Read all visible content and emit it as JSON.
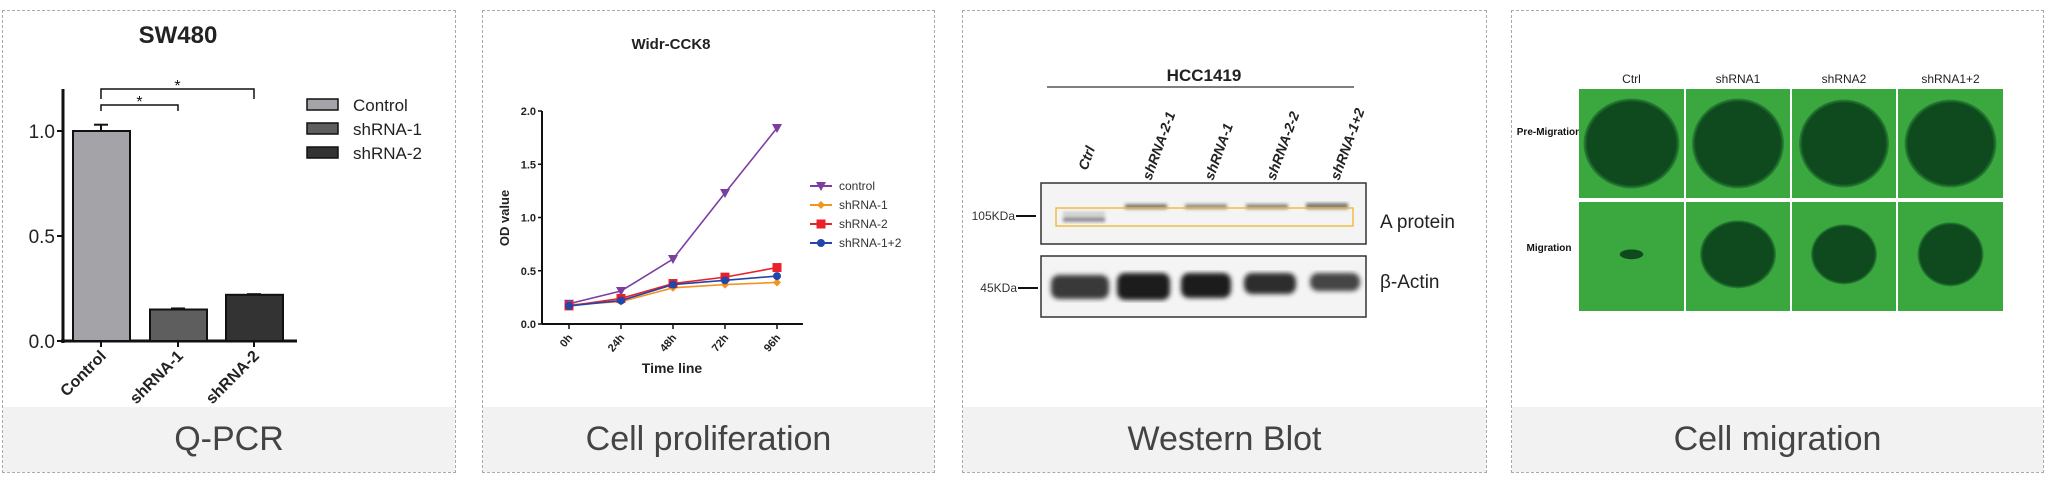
{
  "panels": [
    {
      "caption": "Q-PCR"
    },
    {
      "caption": "Cell proliferation"
    },
    {
      "caption": "Western Blot"
    },
    {
      "caption": "Cell migration"
    }
  ],
  "chart_data": [
    {
      "type": "bar",
      "title": "SW480",
      "categories": [
        "Control",
        "shRNA-1",
        "shRNA-2"
      ],
      "values": [
        1.0,
        0.15,
        0.22
      ],
      "errors": [
        0.03,
        0.005,
        0.003
      ],
      "colors": [
        "#a3a3a8",
        "#5e5e5e",
        "#333333"
      ],
      "legend": [
        "Control",
        "shRNA-1",
        "shRNA-2"
      ],
      "legend_position": "right",
      "yticks": [
        "0.0",
        "0.5",
        "1.0"
      ],
      "ylim": [
        0,
        1.2
      ],
      "significance": [
        "*",
        "*"
      ]
    },
    {
      "type": "line",
      "title": "Widr-CCK8",
      "xlabel": "Time line",
      "ylabel": "OD value",
      "categories": [
        "0h",
        "24h",
        "48h",
        "72h",
        "96h"
      ],
      "yticks": [
        "0.0",
        "0.5",
        "1.0",
        "1.5",
        "2.0"
      ],
      "ylim": [
        0,
        2.0
      ],
      "legend_position": "right",
      "series": [
        {
          "name": "control",
          "color": "#7b3fa0",
          "marker": "triangle-down",
          "values": [
            0.19,
            0.31,
            0.61,
            1.23,
            1.84
          ]
        },
        {
          "name": "shRNA-1",
          "color": "#f39322",
          "marker": "diamond",
          "values": [
            0.18,
            0.21,
            0.34,
            0.37,
            0.39
          ]
        },
        {
          "name": "shRNA-2",
          "color": "#e8212a",
          "marker": "square",
          "values": [
            0.17,
            0.24,
            0.38,
            0.44,
            0.53
          ]
        },
        {
          "name": "shRNA-1+2",
          "color": "#2346a8",
          "marker": "circle",
          "values": [
            0.17,
            0.22,
            0.37,
            0.41,
            0.45
          ]
        }
      ]
    }
  ],
  "western": {
    "title": "HCC1419",
    "lanes": [
      "Ctrl",
      "shRNA-2-1",
      "shRNA-1",
      "shRNA-2-2",
      "shRNA-1+2"
    ],
    "markers": [
      "105KDa",
      "45KDa"
    ],
    "proteins": [
      "A protein",
      "β-Actin"
    ],
    "highlight_color": "#f0b429"
  },
  "migration": {
    "columns": [
      "Ctrl",
      "shRNA1",
      "shRNA2",
      "shRNA1+2"
    ],
    "rows": [
      "Pre-Migration",
      "Migration"
    ]
  }
}
